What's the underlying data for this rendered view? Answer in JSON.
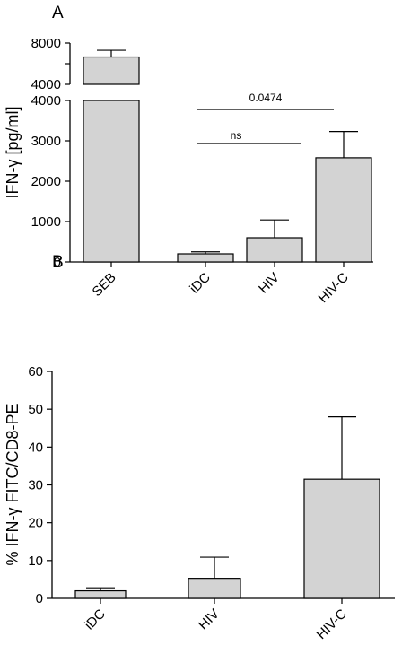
{
  "chart_data": [
    {
      "type": "bar",
      "panel_label": "A",
      "ylabel": "IFN-γ [pg/ml]",
      "categories": [
        "SEB",
        "iDC",
        "HIV",
        "HIV-C"
      ],
      "values": [
        6650,
        200,
        600,
        2580
      ],
      "errors": [
        650,
        50,
        440,
        650
      ],
      "y_axis_broken": true,
      "ylim_lower": [
        0,
        4000
      ],
      "ylim_upper": [
        4000,
        8000
      ],
      "yticks_lower": [
        "0",
        "1000",
        "2000",
        "3000",
        "4000"
      ],
      "yticks_upper": [
        "4000",
        "6000",
        "8000"
      ],
      "annotations": [
        {
          "from": "iDC",
          "to": "HIV",
          "text": "ns"
        },
        {
          "from": "iDC",
          "to": "HIV-C",
          "text": "0.0474"
        }
      ],
      "bar_color": "#d3d3d3",
      "grid": false
    },
    {
      "type": "bar",
      "panel_label": "B",
      "ylabel": "% IFN-γ FITC/CD8-PE",
      "categories": [
        "iDC",
        "HIV",
        "HIV-C"
      ],
      "values": [
        2,
        5.3,
        31.5
      ],
      "errors": [
        0.8,
        5.6,
        16.5
      ],
      "ylim": [
        0,
        60
      ],
      "yticks": [
        "0",
        "10",
        "20",
        "30",
        "40",
        "50",
        "60"
      ],
      "bar_color": "#d3d3d3",
      "grid": false
    }
  ]
}
